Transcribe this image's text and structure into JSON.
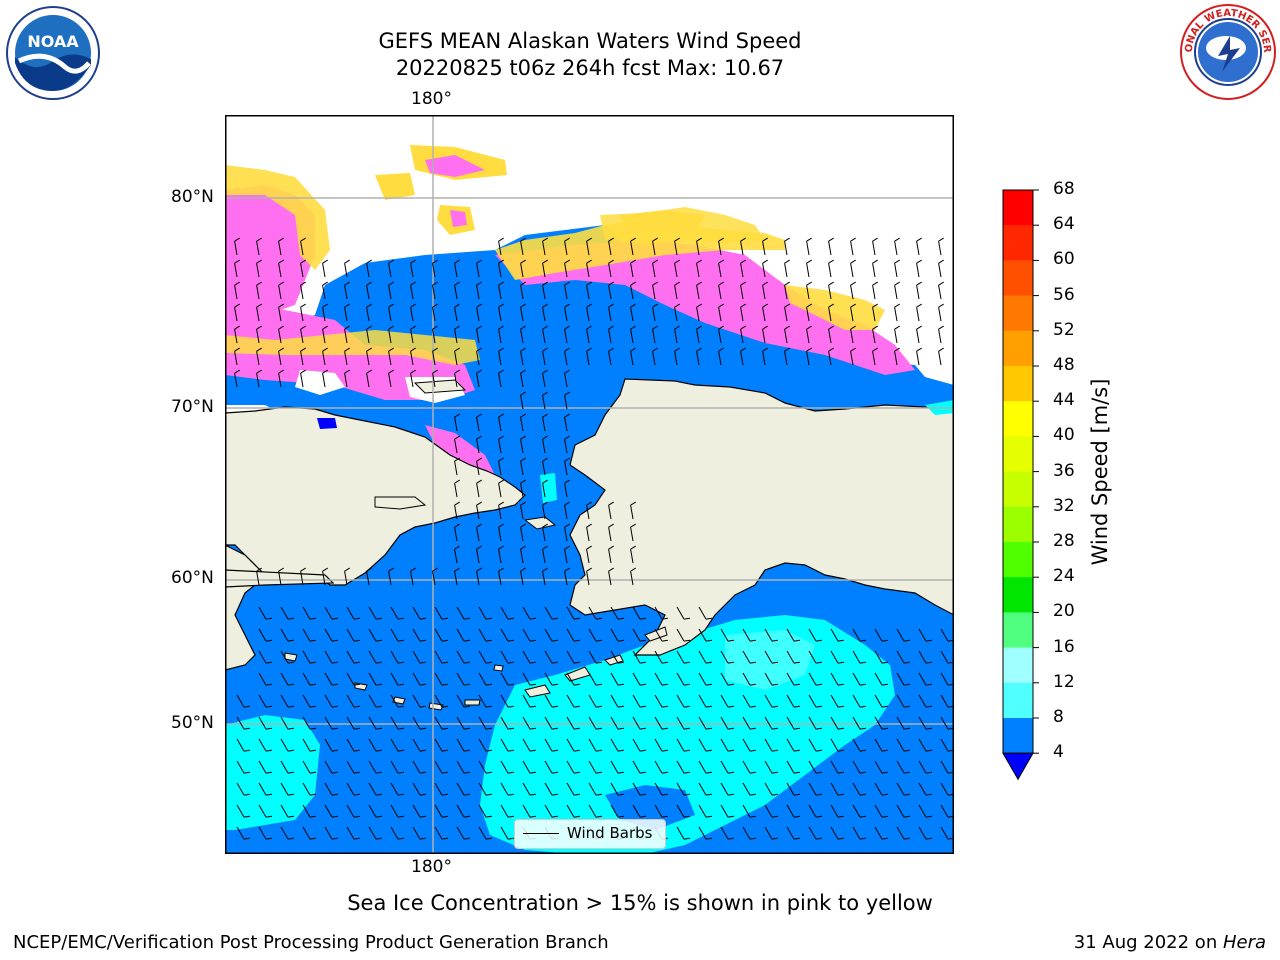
{
  "header": {
    "title_line1": "GEFS MEAN Alaskan Waters Wind Speed",
    "title_line2": "20220825 t06z 264h fcst   Max: 10.67",
    "left_logo": "noaa-logo",
    "right_logo": "national-weather-service-logo",
    "left_logo_text": "NOAA",
    "right_logo_text": "NATIONAL WEATHER SERVICE"
  },
  "map": {
    "lon_label_top": "180°",
    "lon_label_bottom": "180°",
    "lat_labels": [
      "80°N",
      "70°N",
      "60°N",
      "50°N"
    ],
    "colors": {
      "ocean_low": "#0080ff",
      "ocean_mid": "#00ffff",
      "ocean_light": "#80ffff",
      "land": "#efefdf",
      "ice_pink": "#ff70f0",
      "ice_yellow": "#ffdd40",
      "grid": "#b0b0b0",
      "underflow": "#0000ff"
    }
  },
  "legend": {
    "label": "Wind Barbs"
  },
  "colorbar": {
    "label": "Wind Speed [m/s]",
    "ticks": [
      "68",
      "64",
      "60",
      "56",
      "52",
      "48",
      "44",
      "40",
      "36",
      "32",
      "28",
      "24",
      "20",
      "16",
      "12",
      "8",
      "4"
    ],
    "colors": [
      "#ff0000",
      "#ff2800",
      "#ff5000",
      "#ff7800",
      "#ffa000",
      "#ffc800",
      "#ffff00",
      "#e6ff00",
      "#c8ff00",
      "#9bff00",
      "#50ff00",
      "#00e600",
      "#50ff80",
      "#a0ffff",
      "#50ffff",
      "#00ffff",
      "#0080ff"
    ]
  },
  "caption": "Sea Ice Concentration > 15% is shown in pink to yellow",
  "footer": {
    "left": "NCEP/EMC/Verification Post Processing Product Generation Branch",
    "right_date": "31 Aug 2022 on ",
    "right_host": "Hera"
  }
}
